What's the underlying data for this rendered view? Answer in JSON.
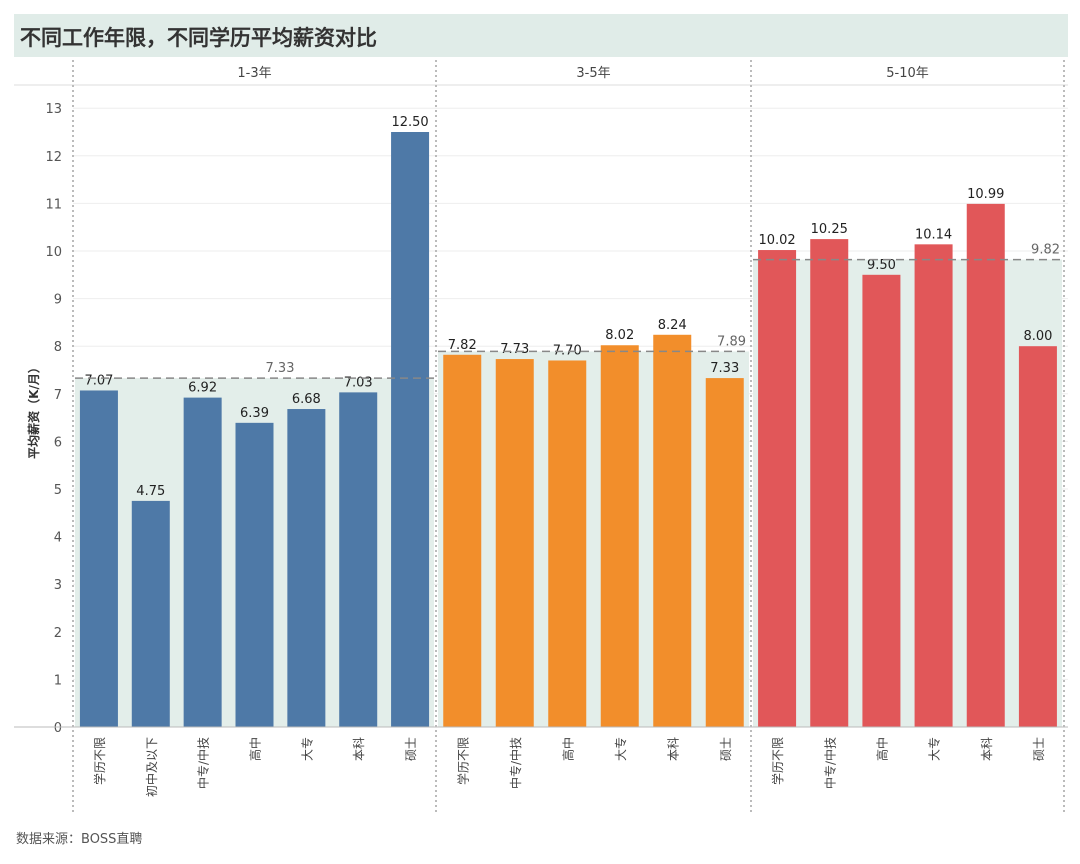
{
  "title": "不同工作年限，不同学历平均薪资对比",
  "source": "数据来源：BOSS直聘",
  "chart_data": {
    "type": "bar",
    "title": "不同工作年限，不同学历平均薪资对比",
    "ylabel": "平均薪资（K/月）",
    "ylim": [
      0,
      13.5
    ],
    "yticks": [
      0,
      1,
      2,
      3,
      4,
      5,
      6,
      7,
      8,
      9,
      10,
      11,
      12,
      13
    ],
    "grid": true,
    "panels": [
      {
        "name": "1-3年",
        "color": "#4e79a7",
        "average": 7.33,
        "categories": [
          "学历不限",
          "初中及以下",
          "中专/中技",
          "高中",
          "大专",
          "本科",
          "硕士"
        ],
        "values": [
          7.07,
          4.75,
          6.92,
          6.39,
          6.68,
          7.03,
          12.5
        ]
      },
      {
        "name": "3-5年",
        "color": "#f28e2b",
        "average": 7.89,
        "categories": [
          "学历不限",
          "中专/中技",
          "高中",
          "大专",
          "本科",
          "硕士"
        ],
        "values": [
          7.82,
          7.73,
          7.7,
          8.02,
          8.24,
          7.33
        ]
      },
      {
        "name": "5-10年",
        "color": "#e15759",
        "average": 9.82,
        "categories": [
          "学历不限",
          "中专/中技",
          "高中",
          "大专",
          "本科",
          "硕士"
        ],
        "values": [
          10.02,
          10.25,
          9.5,
          10.14,
          10.99,
          8.0
        ]
      }
    ],
    "average_band_color": "#e3eeea"
  }
}
